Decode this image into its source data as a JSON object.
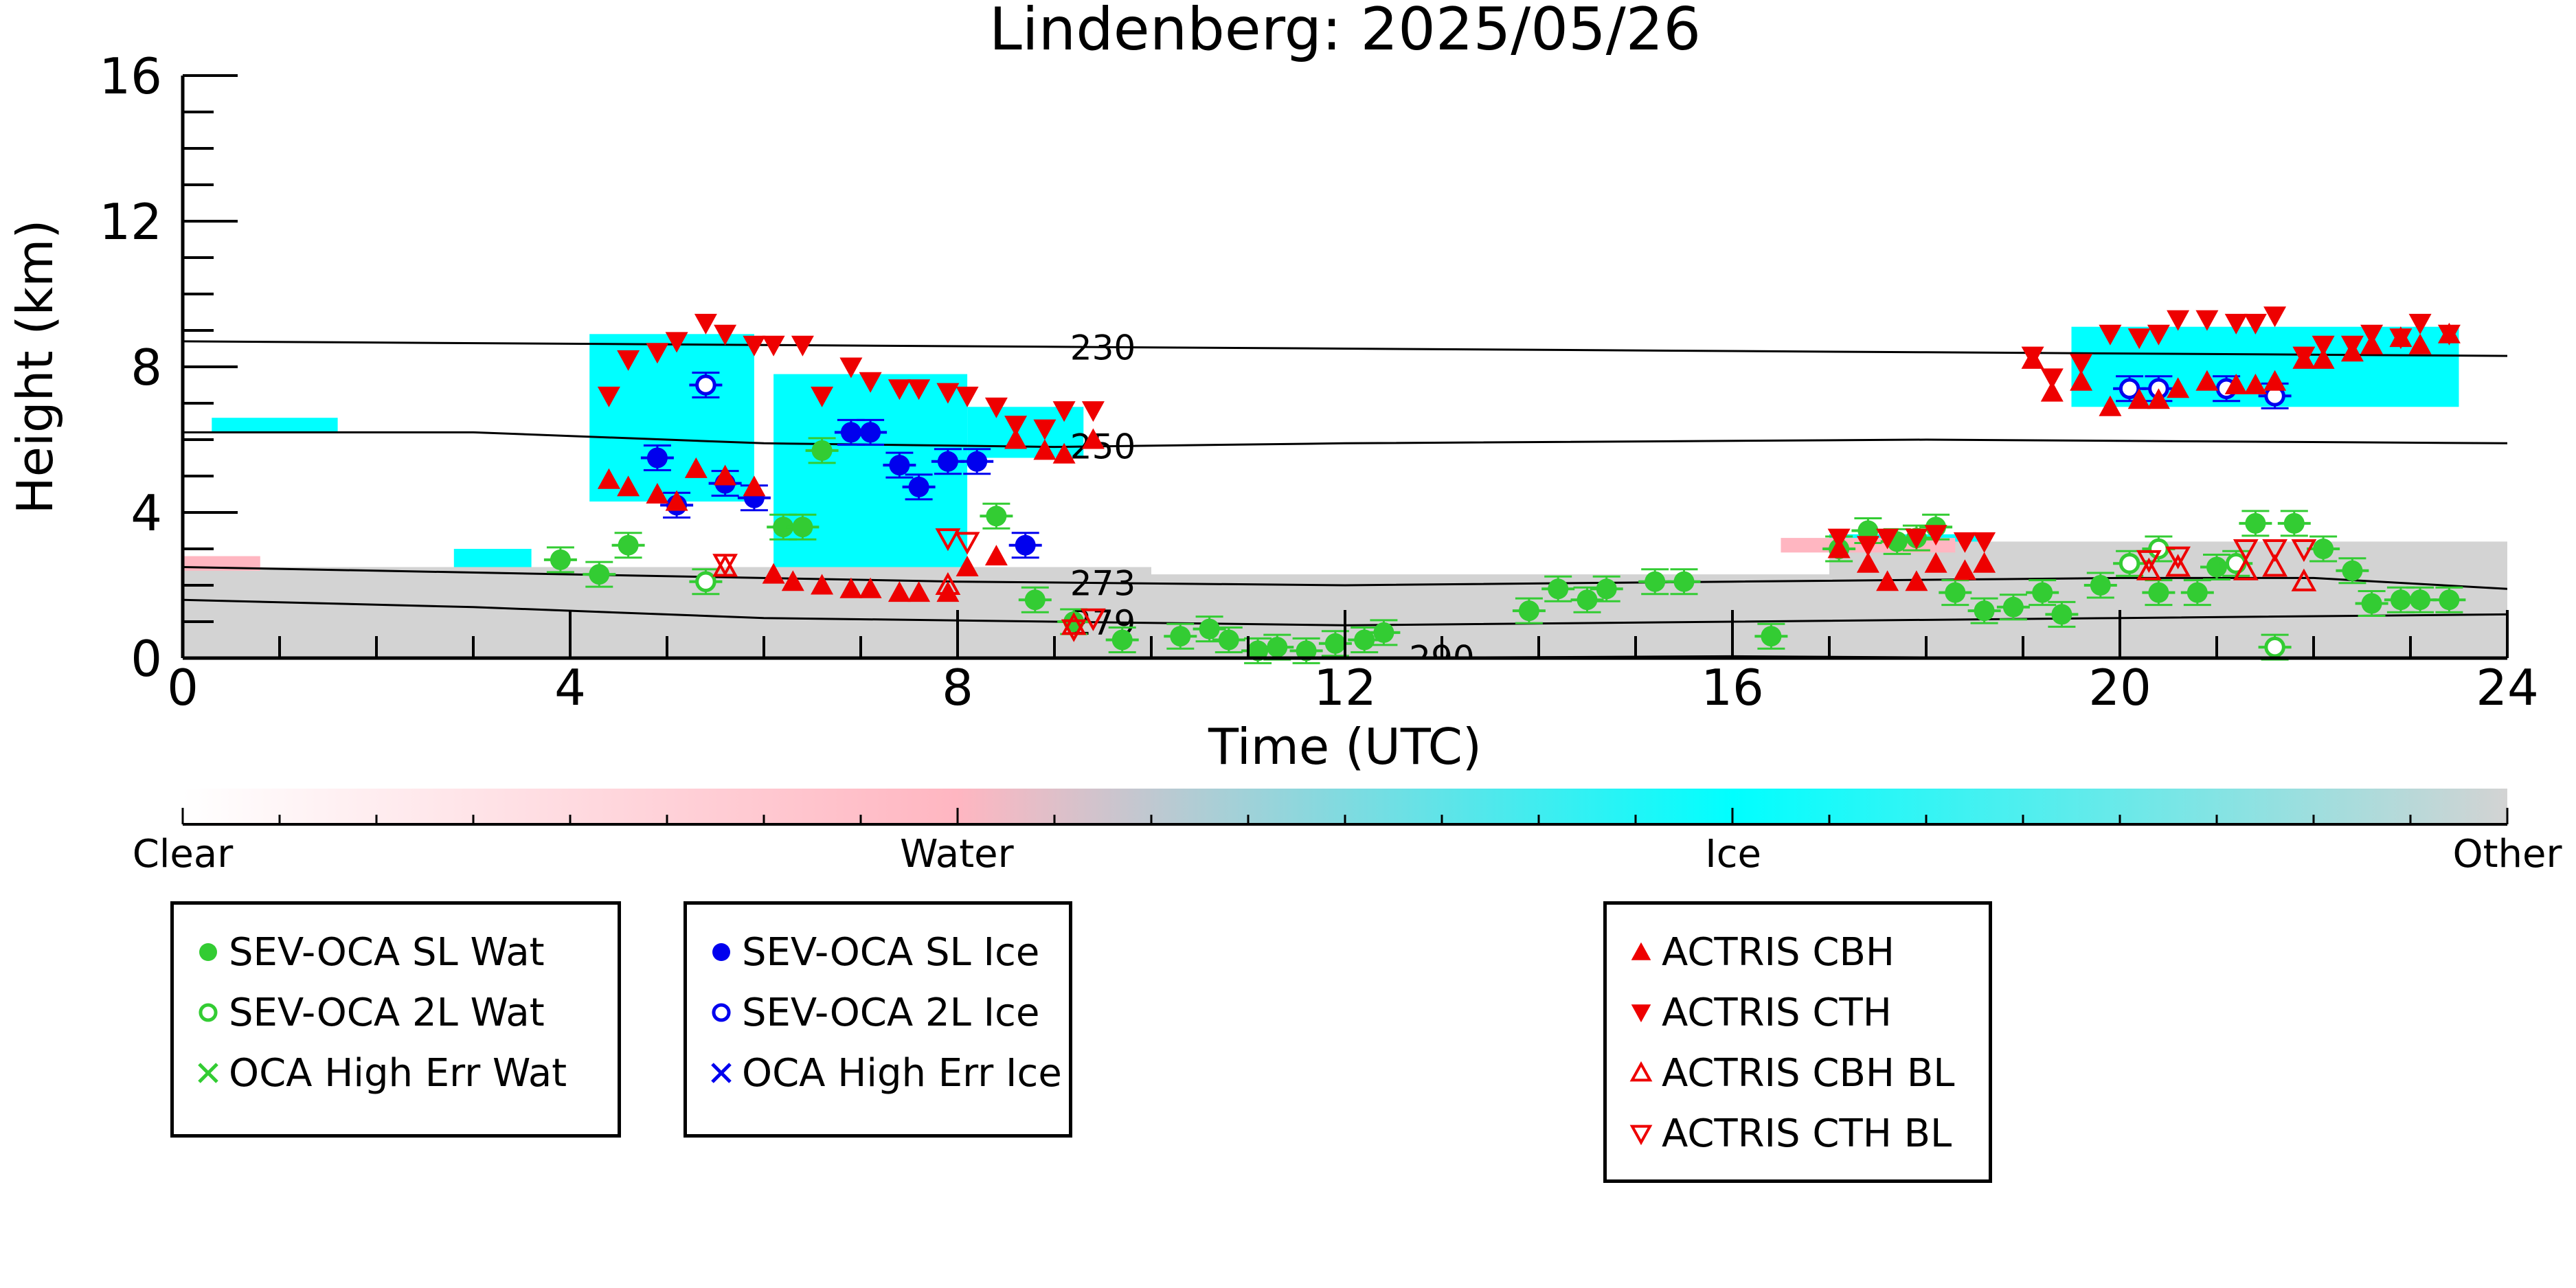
{
  "chart_data": {
    "type": "scatter",
    "title": "Lindenberg: 2025/05/26",
    "xlabel": "Time (UTC)",
    "ylabel": "Height (km)",
    "xlim": [
      0,
      24
    ],
    "ylim": [
      0,
      16
    ],
    "xticks": [
      0,
      4,
      8,
      12,
      16,
      20,
      24
    ],
    "yticks": [
      0,
      4,
      8,
      12,
      16
    ],
    "grid": false,
    "background_field": "cloud target classification (Clear / Water / Ice / Other) as colour shading",
    "colorbar": {
      "labels": [
        {
          "label": "Clear",
          "pos": 0.0
        },
        {
          "label": "Water",
          "pos": 0.333
        },
        {
          "label": "Ice",
          "pos": 0.667
        },
        {
          "label": "Other",
          "pos": 1.0
        }
      ],
      "stops": [
        {
          "color": "#ffffff",
          "pos": 0.0
        },
        {
          "color": "#ffb6c1",
          "pos": 0.333
        },
        {
          "color": "#00ffff",
          "pos": 0.667
        },
        {
          "color": "#d3d3d3",
          "pos": 1.0
        }
      ]
    },
    "isotherms": [
      {
        "label": "230",
        "label_x": 9.5,
        "points": [
          [
            0,
            8.7
          ],
          [
            6,
            8.6
          ],
          [
            12,
            8.5
          ],
          [
            18,
            8.4
          ],
          [
            24,
            8.3
          ]
        ]
      },
      {
        "label": "250",
        "label_x": 9.5,
        "points": [
          [
            0,
            6.2
          ],
          [
            3,
            6.2
          ],
          [
            6,
            5.9
          ],
          [
            9,
            5.8
          ],
          [
            12,
            5.9
          ],
          [
            18,
            6.0
          ],
          [
            24,
            5.9
          ]
        ]
      },
      {
        "label": "273",
        "label_x": 9.5,
        "points": [
          [
            0,
            2.5
          ],
          [
            4,
            2.3
          ],
          [
            8,
            2.1
          ],
          [
            12,
            2.0
          ],
          [
            16,
            2.1
          ],
          [
            20,
            2.2
          ],
          [
            22,
            2.2
          ],
          [
            24,
            1.9
          ]
        ]
      },
      {
        "label": "279",
        "label_x": 9.5,
        "points": [
          [
            0,
            1.6
          ],
          [
            3,
            1.4
          ],
          [
            6,
            1.1
          ],
          [
            9,
            1.0
          ],
          [
            12,
            0.9
          ],
          [
            16,
            1.0
          ],
          [
            20,
            1.1
          ],
          [
            24,
            1.2
          ]
        ]
      },
      {
        "label": "290",
        "label_x": 13.0,
        "points": [
          [
            12,
            0.0
          ],
          [
            16,
            0.05
          ],
          [
            19,
            0.0
          ]
        ]
      }
    ],
    "cloud_patches": [
      {
        "cls": "ice",
        "x": [
          4.2,
          5.9
        ],
        "y": [
          4.3,
          8.9
        ]
      },
      {
        "cls": "ice",
        "x": [
          6.1,
          8.1
        ],
        "y": [
          1.6,
          7.8
        ]
      },
      {
        "cls": "ice",
        "x": [
          8.1,
          9.3
        ],
        "y": [
          5.5,
          6.9
        ]
      },
      {
        "cls": "ice",
        "x": [
          19.5,
          23.5
        ],
        "y": [
          6.9,
          9.1
        ]
      },
      {
        "cls": "ice",
        "x": [
          0.3,
          1.6
        ],
        "y": [
          6.2,
          6.6
        ]
      },
      {
        "cls": "ice",
        "x": [
          2.8,
          3.6
        ],
        "y": [
          1.8,
          3.0
        ]
      },
      {
        "cls": "ice",
        "x": [
          17.0,
          18.6
        ],
        "y": [
          2.6,
          3.4
        ]
      },
      {
        "cls": "ice",
        "x": [
          20.2,
          21.6
        ],
        "y": [
          2.1,
          3.0
        ]
      },
      {
        "cls": "other",
        "x": [
          0.0,
          10.0
        ],
        "y": [
          0.0,
          2.5
        ]
      },
      {
        "cls": "other",
        "x": [
          10.0,
          17.0
        ],
        "y": [
          0.0,
          2.3
        ]
      },
      {
        "cls": "other",
        "x": [
          17.0,
          24.0
        ],
        "y": [
          0.0,
          3.2
        ]
      },
      {
        "cls": "water",
        "x": [
          0.0,
          0.8
        ],
        "y": [
          2.4,
          2.8
        ]
      },
      {
        "cls": "water",
        "x": [
          16.5,
          18.3
        ],
        "y": [
          2.9,
          3.3
        ]
      }
    ],
    "series": [
      {
        "name": "SEV-OCA SL Wat",
        "marker": "circle-filled",
        "color": "#33cc33",
        "points": [
          [
            3.9,
            2.7
          ],
          [
            4.3,
            2.3
          ],
          [
            4.6,
            3.1
          ],
          [
            6.2,
            3.6
          ],
          [
            6.4,
            3.6
          ],
          [
            6.6,
            5.7
          ],
          [
            8.4,
            3.9
          ],
          [
            8.8,
            1.6
          ],
          [
            9.2,
            1.0
          ],
          [
            9.7,
            0.5
          ],
          [
            10.3,
            0.6
          ],
          [
            10.6,
            0.8
          ],
          [
            10.8,
            0.5
          ],
          [
            11.1,
            0.2
          ],
          [
            11.3,
            0.3
          ],
          [
            11.6,
            0.2
          ],
          [
            11.9,
            0.4
          ],
          [
            12.2,
            0.5
          ],
          [
            12.4,
            0.7
          ],
          [
            13.9,
            1.3
          ],
          [
            14.2,
            1.9
          ],
          [
            14.5,
            1.6
          ],
          [
            14.7,
            1.9
          ],
          [
            15.2,
            2.1
          ],
          [
            15.5,
            2.1
          ],
          [
            16.4,
            0.6
          ],
          [
            17.1,
            3.0
          ],
          [
            17.4,
            3.5
          ],
          [
            17.7,
            3.2
          ],
          [
            17.9,
            3.3
          ],
          [
            18.1,
            3.6
          ],
          [
            18.3,
            1.8
          ],
          [
            18.6,
            1.3
          ],
          [
            18.9,
            1.4
          ],
          [
            19.2,
            1.8
          ],
          [
            19.4,
            1.2
          ],
          [
            19.8,
            2.0
          ],
          [
            20.4,
            1.8
          ],
          [
            20.8,
            1.8
          ],
          [
            21.0,
            2.5
          ],
          [
            21.4,
            3.7
          ],
          [
            21.8,
            3.7
          ],
          [
            22.1,
            3.0
          ],
          [
            22.4,
            2.4
          ],
          [
            22.6,
            1.5
          ],
          [
            22.9,
            1.6
          ],
          [
            23.1,
            1.6
          ],
          [
            23.4,
            1.6
          ]
        ]
      },
      {
        "name": "SEV-OCA 2L Wat",
        "marker": "circle-open",
        "color": "#33cc33",
        "points": [
          [
            5.4,
            2.1
          ],
          [
            20.1,
            2.6
          ],
          [
            20.4,
            3.0
          ],
          [
            21.2,
            2.6
          ],
          [
            21.6,
            0.3
          ]
        ]
      },
      {
        "name": "OCA High Err Wat",
        "marker": "x",
        "color": "#33cc33",
        "points": []
      },
      {
        "name": "SEV-OCA SL Ice",
        "marker": "circle-filled",
        "color": "#0000ee",
        "points": [
          [
            4.9,
            5.5
          ],
          [
            5.1,
            4.2
          ],
          [
            5.6,
            4.8
          ],
          [
            5.9,
            4.4
          ],
          [
            6.9,
            6.2
          ],
          [
            7.1,
            6.2
          ],
          [
            7.4,
            5.3
          ],
          [
            7.6,
            4.7
          ],
          [
            7.9,
            5.4
          ],
          [
            8.2,
            5.4
          ],
          [
            8.7,
            3.1
          ]
        ]
      },
      {
        "name": "SEV-OCA 2L Ice",
        "marker": "circle-open",
        "color": "#0000ee",
        "points": [
          [
            5.4,
            7.5
          ],
          [
            20.1,
            7.4
          ],
          [
            20.4,
            7.4
          ],
          [
            21.1,
            7.4
          ],
          [
            21.6,
            7.2
          ]
        ]
      },
      {
        "name": "OCA High Err Ice",
        "marker": "x",
        "color": "#0000ee",
        "points": []
      },
      {
        "name": "ACTRIS CBH",
        "marker": "triangle-up-filled",
        "color": "#ee0000",
        "points": [
          [
            4.4,
            4.9
          ],
          [
            4.6,
            4.7
          ],
          [
            4.9,
            4.5
          ],
          [
            5.1,
            4.3
          ],
          [
            5.3,
            5.2
          ],
          [
            5.6,
            5.0
          ],
          [
            5.9,
            4.7
          ],
          [
            6.1,
            2.3
          ],
          [
            6.3,
            2.1
          ],
          [
            6.6,
            2.0
          ],
          [
            6.9,
            1.9
          ],
          [
            7.1,
            1.9
          ],
          [
            7.4,
            1.8
          ],
          [
            7.6,
            1.8
          ],
          [
            7.9,
            1.8
          ],
          [
            8.1,
            2.5
          ],
          [
            8.4,
            2.8
          ],
          [
            8.6,
            6.0
          ],
          [
            8.9,
            5.7
          ],
          [
            9.1,
            5.6
          ],
          [
            9.4,
            6.0
          ],
          [
            17.1,
            3.0
          ],
          [
            17.4,
            2.6
          ],
          [
            17.6,
            2.1
          ],
          [
            17.9,
            2.1
          ],
          [
            18.1,
            2.6
          ],
          [
            18.4,
            2.4
          ],
          [
            18.6,
            2.6
          ],
          [
            19.1,
            8.2
          ],
          [
            19.3,
            7.3
          ],
          [
            19.6,
            7.6
          ],
          [
            19.9,
            6.9
          ],
          [
            20.2,
            7.1
          ],
          [
            20.4,
            7.1
          ],
          [
            20.6,
            7.4
          ],
          [
            20.9,
            7.6
          ],
          [
            21.2,
            7.5
          ],
          [
            21.4,
            7.5
          ],
          [
            21.6,
            7.6
          ],
          [
            21.9,
            8.2
          ],
          [
            22.1,
            8.2
          ],
          [
            22.4,
            8.4
          ],
          [
            22.6,
            8.6
          ],
          [
            22.9,
            8.8
          ],
          [
            23.1,
            8.6
          ],
          [
            23.4,
            8.9
          ]
        ]
      },
      {
        "name": "ACTRIS CTH",
        "marker": "triangle-down-filled",
        "color": "#ee0000",
        "points": [
          [
            4.4,
            7.2
          ],
          [
            4.6,
            8.2
          ],
          [
            4.9,
            8.4
          ],
          [
            5.1,
            8.7
          ],
          [
            5.4,
            9.2
          ],
          [
            5.6,
            8.9
          ],
          [
            5.9,
            8.6
          ],
          [
            6.1,
            8.6
          ],
          [
            6.4,
            8.6
          ],
          [
            6.6,
            7.2
          ],
          [
            6.9,
            8.0
          ],
          [
            7.1,
            7.6
          ],
          [
            7.4,
            7.4
          ],
          [
            7.6,
            7.4
          ],
          [
            7.9,
            7.3
          ],
          [
            8.1,
            7.2
          ],
          [
            8.4,
            6.9
          ],
          [
            8.6,
            6.4
          ],
          [
            8.9,
            6.3
          ],
          [
            9.1,
            6.8
          ],
          [
            9.4,
            6.8
          ],
          [
            17.1,
            3.3
          ],
          [
            17.4,
            3.1
          ],
          [
            17.6,
            3.3
          ],
          [
            17.9,
            3.3
          ],
          [
            18.1,
            3.4
          ],
          [
            18.4,
            3.2
          ],
          [
            18.6,
            3.2
          ],
          [
            19.1,
            8.3
          ],
          [
            19.3,
            7.7
          ],
          [
            19.6,
            8.1
          ],
          [
            19.9,
            8.9
          ],
          [
            20.2,
            8.8
          ],
          [
            20.4,
            8.9
          ],
          [
            20.6,
            9.3
          ],
          [
            20.9,
            9.3
          ],
          [
            21.2,
            9.2
          ],
          [
            21.4,
            9.2
          ],
          [
            21.6,
            9.4
          ],
          [
            21.9,
            8.3
          ],
          [
            22.1,
            8.6
          ],
          [
            22.4,
            8.6
          ],
          [
            22.6,
            8.9
          ],
          [
            22.9,
            8.8
          ],
          [
            23.1,
            9.2
          ],
          [
            23.4,
            8.9
          ]
        ]
      },
      {
        "name": "ACTRIS CBH BL",
        "marker": "triangle-up-open",
        "color": "#ee0000",
        "points": [
          [
            5.6,
            2.5
          ],
          [
            7.9,
            2.0
          ],
          [
            9.2,
            0.9
          ],
          [
            20.3,
            2.4
          ],
          [
            20.6,
            2.5
          ],
          [
            21.3,
            2.4
          ],
          [
            21.6,
            2.5
          ],
          [
            21.9,
            2.1
          ]
        ]
      },
      {
        "name": "ACTRIS CTH BL",
        "marker": "triangle-down-open",
        "color": "#ee0000",
        "points": [
          [
            5.6,
            2.6
          ],
          [
            7.9,
            3.3
          ],
          [
            8.1,
            3.2
          ],
          [
            9.2,
            0.8
          ],
          [
            9.4,
            1.1
          ],
          [
            20.3,
            2.7
          ],
          [
            20.6,
            2.8
          ],
          [
            21.3,
            3.0
          ],
          [
            21.6,
            3.0
          ],
          [
            21.9,
            3.0
          ]
        ]
      }
    ]
  },
  "legends": [
    {
      "entries": [
        "SEV-OCA SL Wat",
        "SEV-OCA 2L Wat",
        "OCA High Err Wat"
      ]
    },
    {
      "entries": [
        "SEV-OCA SL Ice",
        "SEV-OCA 2L Ice",
        "OCA High Err Ice"
      ]
    },
    {
      "entries": [
        "ACTRIS CBH",
        "ACTRIS CTH",
        "ACTRIS CBH BL",
        "ACTRIS CTH BL"
      ]
    }
  ]
}
